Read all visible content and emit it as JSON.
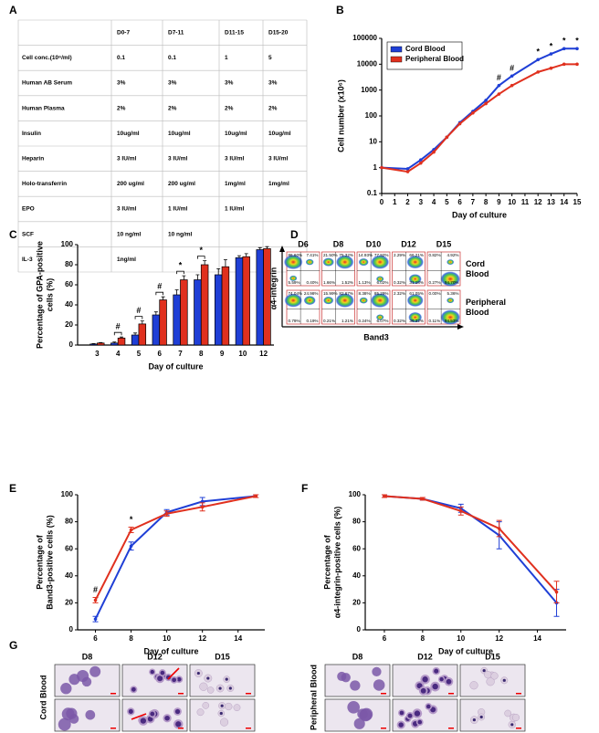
{
  "panels": [
    "A",
    "B",
    "C",
    "D",
    "E",
    "F",
    "G"
  ],
  "table": {
    "columns": [
      null,
      "D0-7",
      "D7-11",
      "D11-15",
      "D15-20"
    ],
    "rows": [
      [
        "Cell conc.(10⁶/ml)",
        "0.1",
        "0.1",
        "1",
        "5"
      ],
      [
        "Human AB Serum",
        "3%",
        "3%",
        "3%",
        "3%"
      ],
      [
        "Human Plasma",
        "2%",
        "2%",
        "2%",
        "2%"
      ],
      [
        "Insulin",
        "10ug/ml",
        "10ug/ml",
        "10ug/ml",
        "10ug/ml"
      ],
      [
        "Heparin",
        "3 IU/ml",
        "3 IU/ml",
        "3 IU/ml",
        "3 IU/ml"
      ],
      [
        "Holo-transferrin",
        "200 ug/ml",
        "200 ug/ml",
        "1mg/ml",
        "1mg/ml"
      ],
      [
        "EPO",
        "3 IU/ml",
        "1 IU/ml",
        "1 IU/ml",
        null
      ],
      [
        "SCF",
        "10 ng/ml",
        "10 ng/ml",
        null,
        null
      ],
      [
        "IL-3",
        "1ng/ml",
        null,
        null,
        null
      ]
    ]
  },
  "chart_data": [
    {
      "type": "line",
      "log_scale": true,
      "legend": "upper left",
      "x": [
        0,
        2,
        3,
        4,
        5,
        6,
        7,
        8,
        9,
        10,
        12,
        13,
        14,
        15
      ],
      "series": [
        {
          "name": "Cord Blood",
          "color": "#1f3fd6",
          "values": [
            1,
            0.9,
            2,
            5,
            15,
            55,
            150,
            400,
            1500,
            3500,
            15000,
            25000,
            40000,
            40000
          ]
        },
        {
          "name": "Peripheral Blood",
          "color": "#e0301e",
          "values": [
            1,
            0.7,
            1.5,
            4,
            15,
            50,
            130,
            300,
            700,
            1500,
            5000,
            7000,
            10000,
            10000
          ]
        }
      ],
      "xlim": [
        0,
        15
      ],
      "xticks": [
        0,
        1,
        2,
        3,
        4,
        5,
        6,
        7,
        8,
        9,
        10,
        11,
        12,
        13,
        14,
        15
      ],
      "ylim": [
        0.1,
        100000
      ],
      "yticks": [
        0.1,
        1,
        10,
        100,
        1000,
        10000,
        100000
      ],
      "xlabel": "Day of culture",
      "ylabel": [
        "Cell number (x10⁶)"
      ],
      "annotations": [
        {
          "text": "#",
          "x": 9
        },
        {
          "text": "#",
          "x": 10
        },
        {
          "text": "*",
          "x": 12
        },
        {
          "text": "*",
          "x": 13
        },
        {
          "text": "*",
          "x": 14
        },
        {
          "text": "*",
          "x": 15
        }
      ]
    },
    {
      "type": "bar",
      "categories": [
        "3",
        "4",
        "5",
        "6",
        "7",
        "8",
        "9",
        "10",
        "12"
      ],
      "series": [
        {
          "color": "#1f3fd6",
          "values": [
            1,
            2,
            10,
            30,
            50,
            65,
            70,
            87,
            95
          ],
          "errors": [
            0.5,
            1,
            2,
            3,
            5,
            5,
            6,
            2,
            2
          ]
        },
        {
          "color": "#e0301e",
          "values": [
            2,
            7,
            21,
            45,
            65,
            80,
            78,
            88,
            96
          ],
          "errors": [
            0.5,
            1,
            3,
            3,
            4,
            4,
            7,
            3,
            2
          ]
        }
      ],
      "ylim": [
        0,
        100
      ],
      "yticks": [
        0,
        20,
        40,
        60,
        80,
        100
      ],
      "xlabel": "Day of culture",
      "ylabel": [
        "Percentage of GPA-positive",
        "cells (%)"
      ],
      "annotations": [
        {
          "text": "#",
          "category": "4"
        },
        {
          "text": "#",
          "category": "5"
        },
        {
          "text": "#",
          "category": "6"
        },
        {
          "text": "*",
          "category": "7"
        },
        {
          "text": "*",
          "category": "8"
        }
      ]
    },
    {
      "type": "line",
      "x": [
        6,
        8,
        10,
        12,
        15
      ],
      "series": [
        {
          "color": "#1f3fd6",
          "values": [
            8,
            62,
            87,
            95,
            99
          ],
          "errors": [
            2,
            3,
            2,
            3,
            1
          ]
        },
        {
          "color": "#e0301e",
          "values": [
            22,
            74,
            86,
            91,
            99
          ],
          "errors": [
            2,
            2,
            2,
            3,
            1
          ]
        }
      ],
      "xlim": [
        5,
        15.5
      ],
      "xticks": [
        6,
        8,
        10,
        12,
        14
      ],
      "ylim": [
        0,
        100
      ],
      "yticks": [
        0,
        20,
        40,
        60,
        80,
        100
      ],
      "xlabel": "Day of culture",
      "ylabel": [
        "Percentage of",
        "Band3-positive cells (%)"
      ],
      "annotations": [
        {
          "text": "#",
          "x": 6
        },
        {
          "text": "*",
          "x": 8
        }
      ]
    },
    {
      "type": "line",
      "x": [
        6,
        8,
        10,
        12,
        15
      ],
      "series": [
        {
          "color": "#1f3fd6",
          "values": [
            99,
            97,
            90,
            70,
            20
          ],
          "errors": [
            1,
            1,
            3,
            10,
            10
          ]
        },
        {
          "color": "#e0301e",
          "values": [
            99,
            97,
            88,
            75,
            28
          ],
          "errors": [
            1,
            1,
            3,
            6,
            8
          ]
        }
      ],
      "xlim": [
        5,
        15.5
      ],
      "xticks": [
        6,
        8,
        10,
        12,
        14
      ],
      "ylim": [
        0,
        100
      ],
      "yticks": [
        0,
        20,
        40,
        60,
        80,
        100
      ],
      "xlabel": "Day of culture",
      "ylabel": [
        "Percentage of",
        "α4-integrin-positive cells (%)"
      ]
    }
  ],
  "flow": {
    "days": [
      "D6",
      "D8",
      "D10",
      "D12",
      "D15"
    ],
    "row_labels": [
      [
        "Cord",
        "Blood"
      ],
      [
        "Peripheral",
        "Blood"
      ]
    ],
    "y_axis": "α4-integrin",
    "x_axis": "Band3",
    "quadrants": [
      [
        [
          "86.60%",
          "7.41%",
          "5.59%",
          "0.40%"
        ],
        [
          "21.50%",
          "75.32%",
          "1.66%",
          "1.52%"
        ],
        [
          "14.93%",
          "77.92%",
          "1.13%",
          "6.02%"
        ],
        [
          "2.29%",
          "66.21%",
          "0.32%",
          "31.18%"
        ],
        [
          "0.82%",
          "4.92%",
          "0.27%",
          "94.70%"
        ]
      ],
      [
        [
          "74.04%",
          "24.98%",
          "0.79%",
          "0.19%"
        ],
        [
          "15.99%",
          "82.67%",
          "0.21%",
          "1.21%"
        ],
        [
          "8.38%",
          "85.29%",
          "0.24%",
          "6.07%"
        ],
        [
          "2.32%",
          "61.05%",
          "0.32%",
          "36.32%"
        ],
        [
          "0.00%",
          "5.36%",
          "0.11%",
          "94.53%"
        ]
      ]
    ]
  },
  "micrographs": {
    "groups": [
      {
        "label": "Cord Blood",
        "columns": [
          "D8",
          "D12",
          "D15"
        ]
      },
      {
        "label": "Peripheral Blood",
        "columns": [
          "D8",
          "D12",
          "D15"
        ]
      }
    ]
  }
}
